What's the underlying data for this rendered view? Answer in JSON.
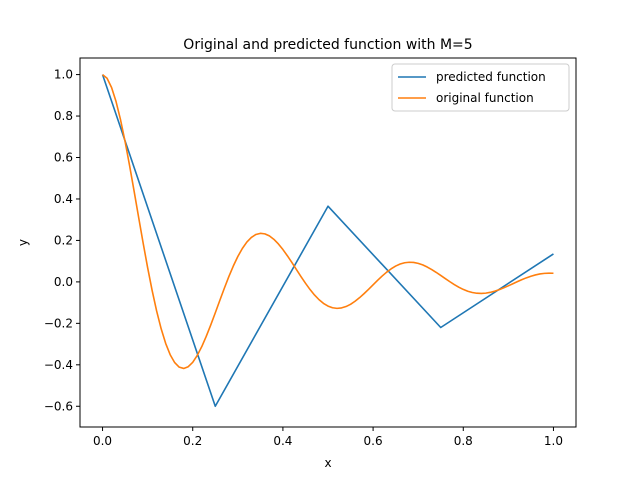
{
  "chart_data": {
    "type": "line",
    "title": "Original and predicted function with M=5",
    "xlabel": "x",
    "ylabel": "y",
    "xlim": [
      -0.05,
      1.05
    ],
    "ylim": [
      -0.7,
      1.08
    ],
    "xticks": [
      0.0,
      0.2,
      0.4,
      0.6,
      0.8,
      1.0
    ],
    "yticks": [
      -0.6,
      -0.4,
      -0.2,
      0.0,
      0.2,
      0.4,
      0.6,
      0.8,
      1.0
    ],
    "xtick_labels": [
      "0.0",
      "0.2",
      "0.4",
      "0.6",
      "0.8",
      "1.0"
    ],
    "ytick_labels": [
      "−0.6",
      "−0.4",
      "−0.2",
      "0.0",
      "0.2",
      "0.4",
      "0.6",
      "0.8",
      "1.0"
    ],
    "grid": false,
    "legend_position": "top-right",
    "series": [
      {
        "name": "predicted function",
        "color": "#1f77b4",
        "x": [
          0.0,
          0.25,
          0.5,
          0.75,
          1.0
        ],
        "y": [
          1.0,
          -0.6,
          0.365,
          -0.22,
          0.135
        ]
      },
      {
        "name": "original function",
        "color": "#ff7f0e",
        "x": [
          0.0,
          0.01,
          0.02,
          0.03,
          0.04,
          0.05,
          0.06,
          0.07,
          0.08,
          0.09,
          0.1,
          0.11,
          0.12,
          0.13,
          0.14,
          0.15,
          0.16,
          0.17,
          0.18,
          0.19,
          0.2,
          0.21,
          0.22,
          0.23,
          0.24,
          0.25,
          0.26,
          0.27,
          0.28,
          0.29,
          0.3,
          0.31,
          0.32,
          0.33,
          0.34,
          0.35,
          0.36,
          0.37,
          0.38,
          0.39,
          0.4,
          0.41,
          0.42,
          0.43,
          0.44,
          0.45,
          0.46,
          0.47,
          0.48,
          0.49,
          0.5,
          0.51,
          0.52,
          0.53,
          0.54,
          0.55,
          0.56,
          0.57,
          0.58,
          0.59,
          0.6,
          0.61,
          0.62,
          0.63,
          0.64,
          0.65,
          0.66,
          0.67,
          0.68,
          0.69,
          0.7,
          0.71,
          0.72,
          0.73,
          0.74,
          0.75,
          0.76,
          0.77,
          0.78,
          0.79,
          0.8,
          0.81,
          0.82,
          0.83,
          0.84,
          0.85,
          0.86,
          0.87,
          0.88,
          0.89,
          0.9,
          0.91,
          0.92,
          0.93,
          0.94,
          0.95,
          0.96,
          0.97,
          0.98,
          0.99,
          1.0
        ],
        "y": [
          1.0,
          0.9823,
          0.9377,
          0.8694,
          0.781,
          0.6766,
          0.5606,
          0.4375,
          0.3118,
          0.1875,
          0.0685,
          -0.0419,
          -0.1408,
          -0.2262,
          -0.2968,
          -0.3513,
          -0.3894,
          -0.4113,
          -0.4175,
          -0.4092,
          -0.3877,
          -0.3548,
          -0.3125,
          -0.2627,
          -0.2077,
          -0.1494,
          -0.0899,
          -0.0312,
          0.025,
          0.0766,
          0.1224,
          0.1611,
          0.192,
          0.2146,
          0.2287,
          0.2342,
          0.2317,
          0.2218,
          0.2052,
          0.1829,
          0.156,
          0.1256,
          0.0931,
          0.0594,
          0.0259,
          -0.0064,
          -0.0363,
          -0.063,
          -0.0856,
          -0.1037,
          -0.1168,
          -0.1248,
          -0.1277,
          -0.1256,
          -0.1189,
          -0.108,
          -0.0935,
          -0.0761,
          -0.0566,
          -0.0356,
          -0.0139,
          0.0075,
          0.0281,
          0.0468,
          0.063,
          0.0763,
          0.0861,
          0.0923,
          0.0948,
          0.0938,
          0.0894,
          0.0819,
          0.0717,
          0.0595,
          0.0458,
          0.0311,
          0.0161,
          0.0012,
          -0.0128,
          -0.0255,
          -0.0364,
          -0.045,
          -0.0511,
          -0.0547,
          -0.0557,
          -0.0542,
          -0.0504,
          -0.0446,
          -0.0372,
          -0.0285,
          -0.0189,
          -0.0089,
          0.0011,
          0.0108,
          0.0196,
          0.0273,
          0.0336,
          0.0382,
          0.0411,
          0.0422,
          0.0416
        ]
      }
    ]
  }
}
